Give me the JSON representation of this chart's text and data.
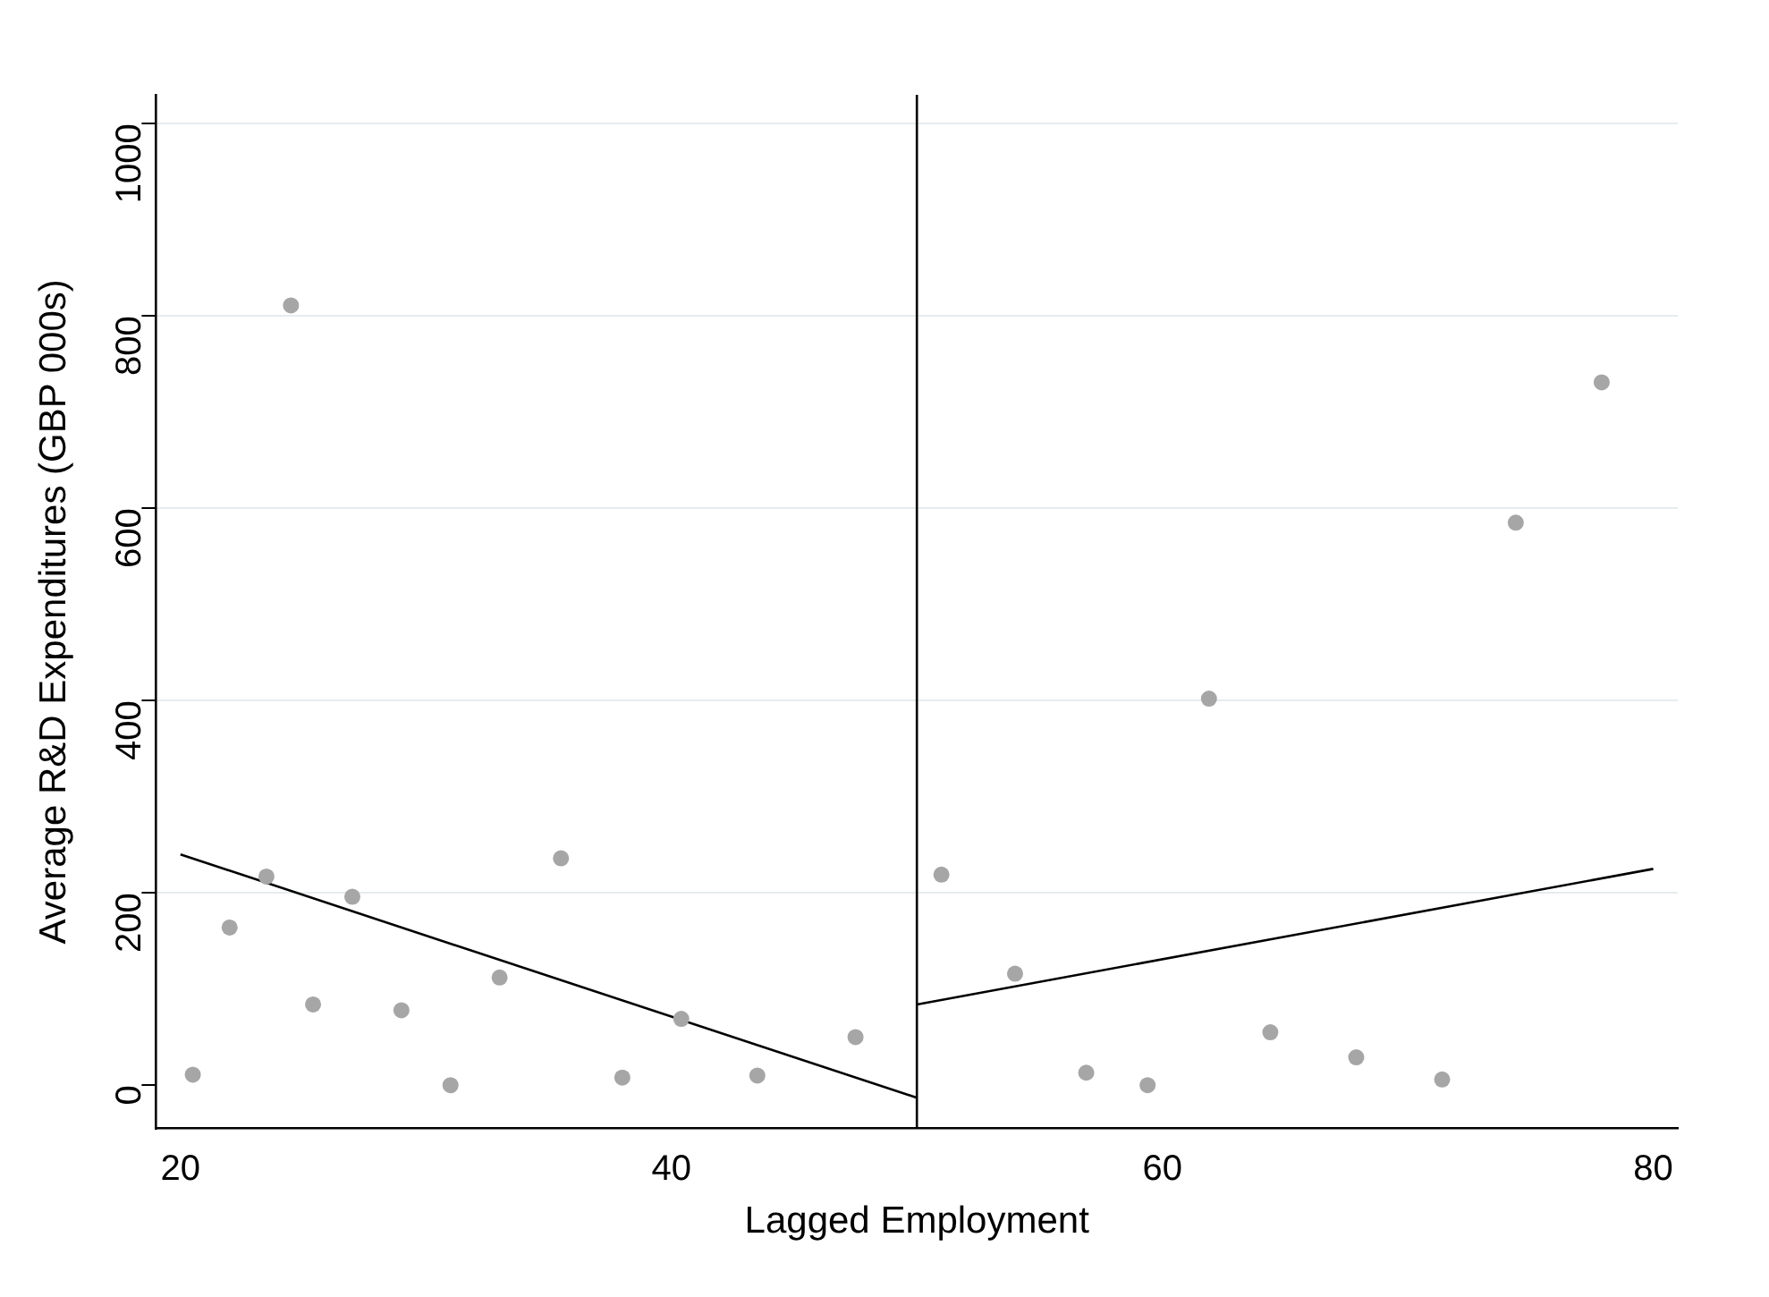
{
  "chart_data": {
    "type": "scatter",
    "xlabel": "Lagged Employment",
    "ylabel": "Average R&D Expenditures (GBP 000s)",
    "xlim": [
      19,
      81
    ],
    "ylim": [
      -45,
      1030
    ],
    "xticks": [
      20,
      40,
      60,
      80
    ],
    "yticks": [
      0,
      200,
      400,
      600,
      800,
      1000
    ],
    "grid": "y",
    "legend": false,
    "marker": "circle",
    "series": [
      {
        "type": "scatter",
        "color": "#a6a6a6",
        "x": [
          20.5,
          22.0,
          23.5,
          24.5,
          25.4,
          27.0,
          29.0,
          31.0,
          33.0,
          35.5,
          38.0,
          40.4,
          43.5,
          47.5,
          51.0,
          54.0,
          56.9,
          59.4,
          61.9,
          64.4,
          67.9,
          71.4,
          74.4,
          77.9
        ],
        "values": [
          11,
          164,
          217,
          811,
          84,
          196,
          78,
          0,
          112,
          236,
          8,
          69,
          10,
          50,
          219,
          116,
          13,
          0,
          402,
          55,
          29,
          6,
          585,
          731
        ]
      },
      {
        "type": "line",
        "color": "#000000",
        "marker": "none",
        "x": [
          20,
          50
        ],
        "values": [
          240,
          -13
        ]
      },
      {
        "type": "line",
        "color": "#000000",
        "marker": "none",
        "x": [
          50,
          80
        ],
        "values": [
          84,
          225
        ]
      }
    ],
    "ref_lines": [
      {
        "axis": "x",
        "value": 50,
        "color": "#000000"
      }
    ]
  }
}
